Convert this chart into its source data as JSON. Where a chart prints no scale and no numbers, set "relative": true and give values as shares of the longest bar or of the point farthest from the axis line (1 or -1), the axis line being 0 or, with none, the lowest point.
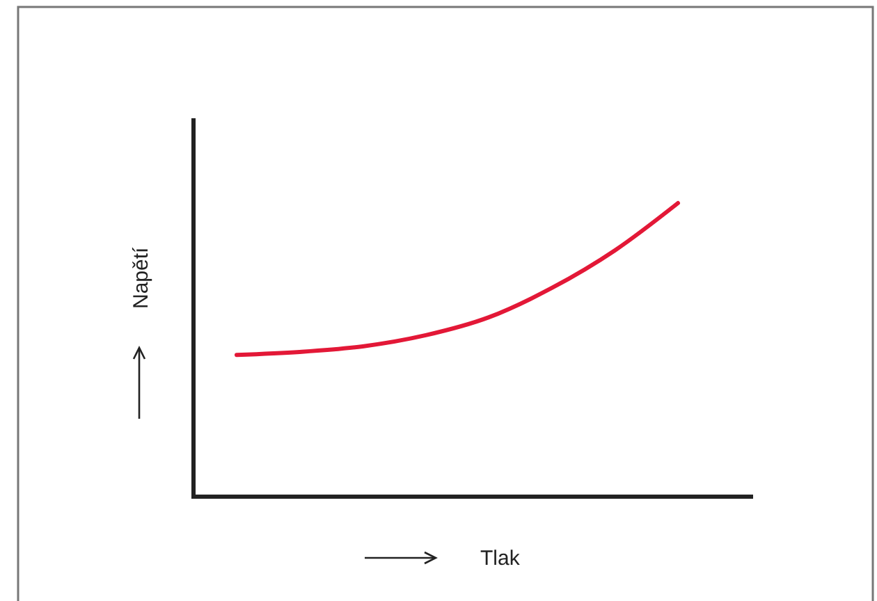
{
  "chart_data": {
    "type": "line",
    "relative": true,
    "xlabel": "Tlak",
    "ylabel": "Napětí",
    "categories": [
      null,
      null,
      null,
      null,
      null,
      null,
      null,
      null
    ],
    "series": [
      {
        "color": "#e31837",
        "values": [
          0.483,
          0.493,
          0.512,
          0.55,
          0.611,
          0.711,
          0.839,
          1
        ]
      }
    ],
    "marker": "none",
    "line_style": "solid"
  }
}
